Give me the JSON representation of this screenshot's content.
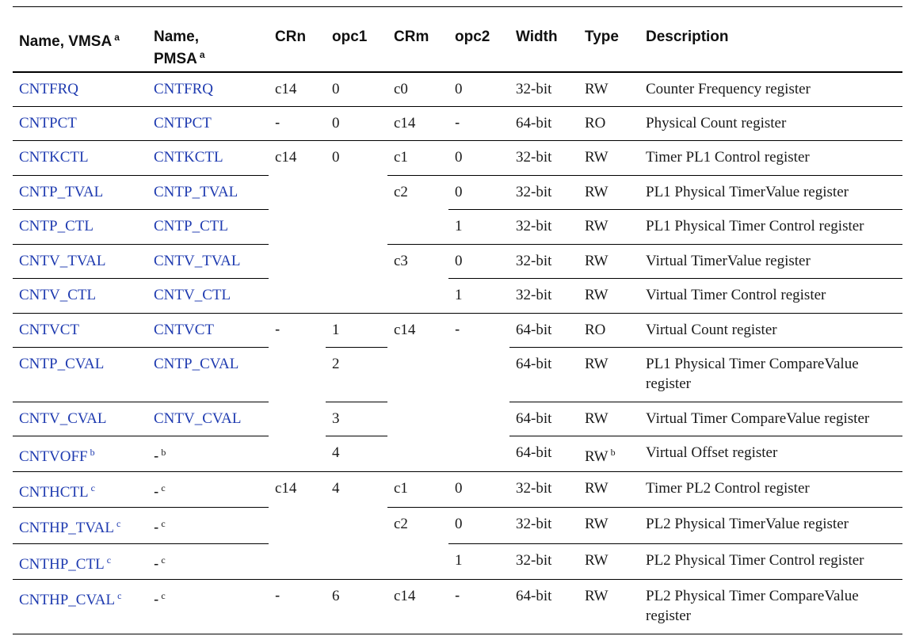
{
  "header": {
    "name_vmsa": "Name, VMSA",
    "name_vmsa_sup": "a",
    "name_pmsa_line1": "Name,",
    "name_pmsa_line2": "PMSA",
    "name_pmsa_sup": "a",
    "crn": "CRn",
    "opc1": "opc1",
    "crm": "CRm",
    "opc2": "opc2",
    "width": "Width",
    "type": "Type",
    "description": "Description"
  },
  "rows": [
    {
      "vmsa": "CNTFRQ",
      "pmsa": "CNTFRQ",
      "crn": "c14",
      "opc1": "0",
      "crm": "c0",
      "opc2": "0",
      "width": "32-bit",
      "type": "RW",
      "desc": "Counter Frequency register"
    },
    {
      "vmsa": "CNTPCT",
      "pmsa": "CNTPCT",
      "crn": "-",
      "opc1": "0",
      "crm": "c14",
      "opc2": "-",
      "width": "64-bit",
      "type": "RO",
      "desc": "Physical Count register"
    },
    {
      "vmsa": "CNTKCTL",
      "pmsa": "CNTKCTL",
      "crn": "c14",
      "opc1": "0",
      "crm": "c1",
      "opc2": "0",
      "width": "32-bit",
      "type": "RW",
      "desc": "Timer PL1 Control register"
    },
    {
      "vmsa": "CNTP_TVAL",
      "pmsa": "CNTP_TVAL",
      "crm": "c2",
      "opc2": "0",
      "width": "32-bit",
      "type": "RW",
      "desc": "PL1 Physical TimerValue register"
    },
    {
      "vmsa": "CNTP_CTL",
      "pmsa": "CNTP_CTL",
      "opc2": "1",
      "width": "32-bit",
      "type": "RW",
      "desc": "PL1 Physical Timer Control register"
    },
    {
      "vmsa": "CNTV_TVAL",
      "pmsa": "CNTV_TVAL",
      "crm": "c3",
      "opc2": "0",
      "width": "32-bit",
      "type": "RW",
      "desc": "Virtual TimerValue register"
    },
    {
      "vmsa": "CNTV_CTL",
      "pmsa": "CNTV_CTL",
      "opc2": "1",
      "width": "32-bit",
      "type": "RW",
      "desc": "Virtual Timer Control register"
    },
    {
      "vmsa": "CNTVCT",
      "pmsa": "CNTVCT",
      "crn": "-",
      "opc1": "1",
      "crm": "c14",
      "opc2": "-",
      "width": "64-bit",
      "type": "RO",
      "desc": "Virtual Count register"
    },
    {
      "vmsa": "CNTP_CVAL",
      "pmsa": "CNTP_CVAL",
      "opc1": "2",
      "width": "64-bit",
      "type": "RW",
      "desc": "PL1 Physical Timer CompareValue register"
    },
    {
      "vmsa": "CNTV_CVAL",
      "pmsa": "CNTV_CVAL",
      "opc1": "3",
      "width": "64-bit",
      "type": "RW",
      "desc": "Virtual Timer CompareValue register"
    },
    {
      "vmsa": "CNTVOFF",
      "vmsa_sup": "b",
      "pmsa": "-",
      "pmsa_sup": "b",
      "opc1": "4",
      "width": "64-bit",
      "type": "RW",
      "type_sup": "b",
      "desc": "Virtual Offset register"
    },
    {
      "vmsa": "CNTHCTL",
      "vmsa_sup": "c",
      "pmsa": "-",
      "pmsa_sup": "c",
      "crn": "c14",
      "opc1": "4",
      "crm": "c1",
      "opc2": "0",
      "width": "32-bit",
      "type": "RW",
      "desc": "Timer PL2 Control register"
    },
    {
      "vmsa": "CNTHP_TVAL",
      "vmsa_sup": "c",
      "pmsa": "-",
      "pmsa_sup": "c",
      "crm": "c2",
      "opc2": "0",
      "width": "32-bit",
      "type": "RW",
      "desc": "PL2 Physical TimerValue register"
    },
    {
      "vmsa": "CNTHP_CTL",
      "vmsa_sup": "c",
      "pmsa": "-",
      "pmsa_sup": "c",
      "opc2": "1",
      "width": "32-bit",
      "type": "RW",
      "desc": "PL2 Physical Timer Control register"
    },
    {
      "vmsa": "CNTHP_CVAL",
      "vmsa_sup": "c",
      "pmsa": "-",
      "pmsa_sup": "c",
      "crn": "-",
      "opc1": "6",
      "crm": "c14",
      "opc2": "-",
      "width": "64-bit",
      "type": "RW",
      "desc": "PL2 Physical Timer CompareValue register"
    }
  ]
}
